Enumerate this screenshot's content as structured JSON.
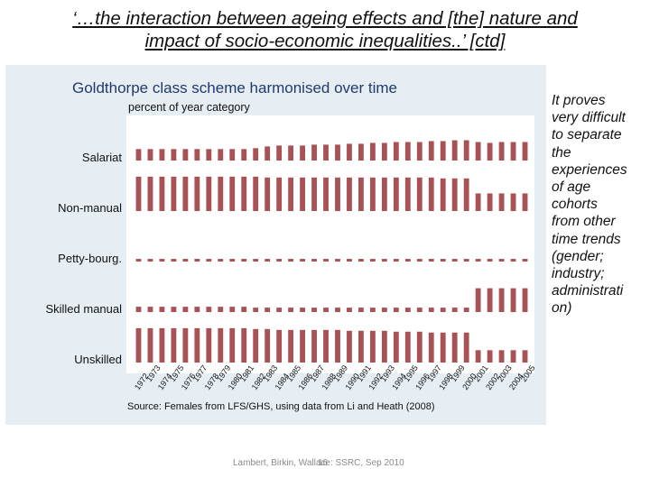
{
  "slide": {
    "title_line1": "‘…the interaction between ageing effects and [the] nature and",
    "title_line2": "impact of socio-economic inequalities..’ [ctd]",
    "side_note": "  It proves\nvery difficult\nto separate\nthe\nexperiences\nof age\ncohorts\nfrom other\ntime trends\n(gender;\nindustry;\nadministrati\non)",
    "footer": "Lambert, Birkin, Wallace: SSRC, Sep 2010",
    "page_number": "16"
  },
  "colors": {
    "bar": "#a85256",
    "panel": "#e6edf3",
    "plot": "#ffffff",
    "title": "#1f3b6e"
  },
  "chart_data": {
    "type": "bar",
    "title": "Goldthorpe class scheme harmonised over time",
    "subtitle": "percent of year category",
    "source": "Source: Females from LFS/GHS, using data from Li and Heath (2008)",
    "years": [
      "1972",
      "1973",
      "1974",
      "1975",
      "1976",
      "1977",
      "1978",
      "1979",
      "1980",
      "1981",
      "1982",
      "1983",
      "1984",
      "1985",
      "1986",
      "1987",
      "1988",
      "1989",
      "1990",
      "1991",
      "1992",
      "1993",
      "1994",
      "1995",
      "1996",
      "1997",
      "1998",
      "1999",
      "2000",
      "2001",
      "2002",
      "2003",
      "2004",
      "2005"
    ],
    "series": [
      {
        "name": "Salariat",
        "values": [
          13,
          13,
          13,
          13,
          13,
          13,
          13,
          13,
          13,
          13,
          14,
          16,
          17,
          17,
          17,
          18,
          18,
          18,
          19,
          19,
          20,
          20,
          21,
          21,
          21,
          22,
          22,
          23,
          23,
          21,
          20,
          21,
          21,
          21
        ]
      },
      {
        "name": "Non-manual",
        "values": [
          39,
          39,
          39,
          39,
          39,
          39,
          39,
          39,
          39,
          39,
          39,
          38,
          38,
          38,
          38,
          38,
          38,
          38,
          38,
          38,
          38,
          38,
          38,
          38,
          38,
          38,
          37,
          37,
          37,
          20,
          20,
          20,
          20,
          20
        ]
      },
      {
        "name": "Petty-bourg.",
        "values": [
          3,
          3,
          3,
          3,
          3,
          3,
          3,
          3,
          3,
          3,
          3,
          3,
          3,
          3,
          3,
          3,
          3,
          3,
          3,
          3,
          3,
          3,
          3,
          3,
          3,
          3,
          3,
          3,
          3,
          3,
          3,
          3,
          3,
          3
        ]
      },
      {
        "name": "Skilled manual",
        "values": [
          6,
          6,
          6,
          6,
          6,
          6,
          6,
          6,
          6,
          6,
          5,
          5,
          5,
          5,
          5,
          5,
          5,
          5,
          5,
          5,
          5,
          5,
          5,
          5,
          5,
          5,
          5,
          5,
          5,
          27,
          27,
          27,
          27,
          27
        ]
      },
      {
        "name": "Unskilled",
        "values": [
          39,
          39,
          39,
          39,
          39,
          39,
          39,
          39,
          39,
          39,
          38,
          38,
          37,
          37,
          37,
          37,
          37,
          37,
          36,
          36,
          36,
          36,
          35,
          35,
          35,
          34,
          34,
          34,
          34,
          14,
          14,
          14,
          14,
          14
        ]
      }
    ],
    "ylim": [
      0,
      100
    ]
  }
}
